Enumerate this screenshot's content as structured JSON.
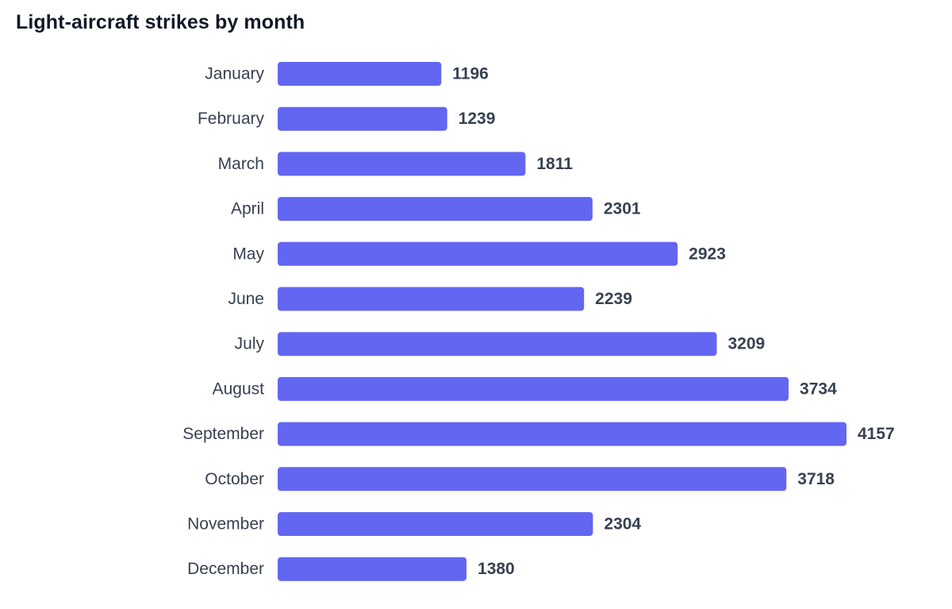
{
  "chart_data": {
    "type": "bar",
    "orientation": "horizontal",
    "title": "Light-aircraft strikes by month",
    "xlabel": "",
    "ylabel": "",
    "categories": [
      "January",
      "February",
      "March",
      "April",
      "May",
      "June",
      "July",
      "August",
      "September",
      "October",
      "November",
      "December"
    ],
    "values": [
      1196,
      1239,
      1811,
      2301,
      2923,
      2239,
      3209,
      3734,
      4157,
      3718,
      2304,
      1380
    ],
    "xlim": [
      0,
      4157
    ],
    "grid": false,
    "legend": "none",
    "data_labels": true,
    "bar_color": "#6366f1",
    "label_color": "#374151",
    "title_color": "#111827"
  }
}
